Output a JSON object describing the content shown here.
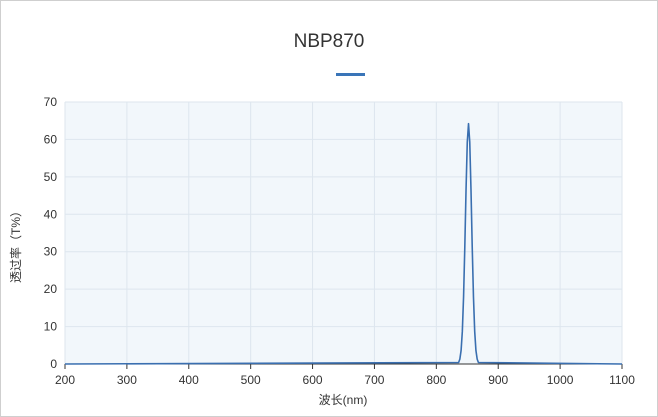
{
  "chart_data": {
    "type": "line",
    "title": "NBP870",
    "xlabel": "波长(nm)",
    "ylabel": "透过率（T%）",
    "xlim": [
      200,
      1100
    ],
    "ylim": [
      0,
      70
    ],
    "xticks": [
      200,
      300,
      400,
      500,
      600,
      700,
      800,
      900,
      1000,
      1100
    ],
    "yticks": [
      0,
      10,
      20,
      30,
      40,
      50,
      60,
      70
    ],
    "grid": true,
    "legend": "none",
    "colors": {
      "line": "#3a6fb0",
      "plot_bg": "#f2f7fb",
      "grid": "#dde6ee",
      "accent": "#3a75b8"
    },
    "series": [
      {
        "x": [
          200,
          836,
          838,
          840,
          842,
          844,
          846,
          848,
          850,
          852,
          854,
          856,
          858,
          860,
          862,
          864,
          866,
          868,
          1100
        ],
        "y": [
          0,
          0.4,
          1.3,
          3.6,
          8.7,
          17.9,
          31.2,
          46.6,
          59.3,
          64.2,
          59.3,
          46.6,
          31.2,
          17.9,
          8.7,
          3.6,
          1.3,
          0.4,
          0
        ]
      }
    ]
  }
}
